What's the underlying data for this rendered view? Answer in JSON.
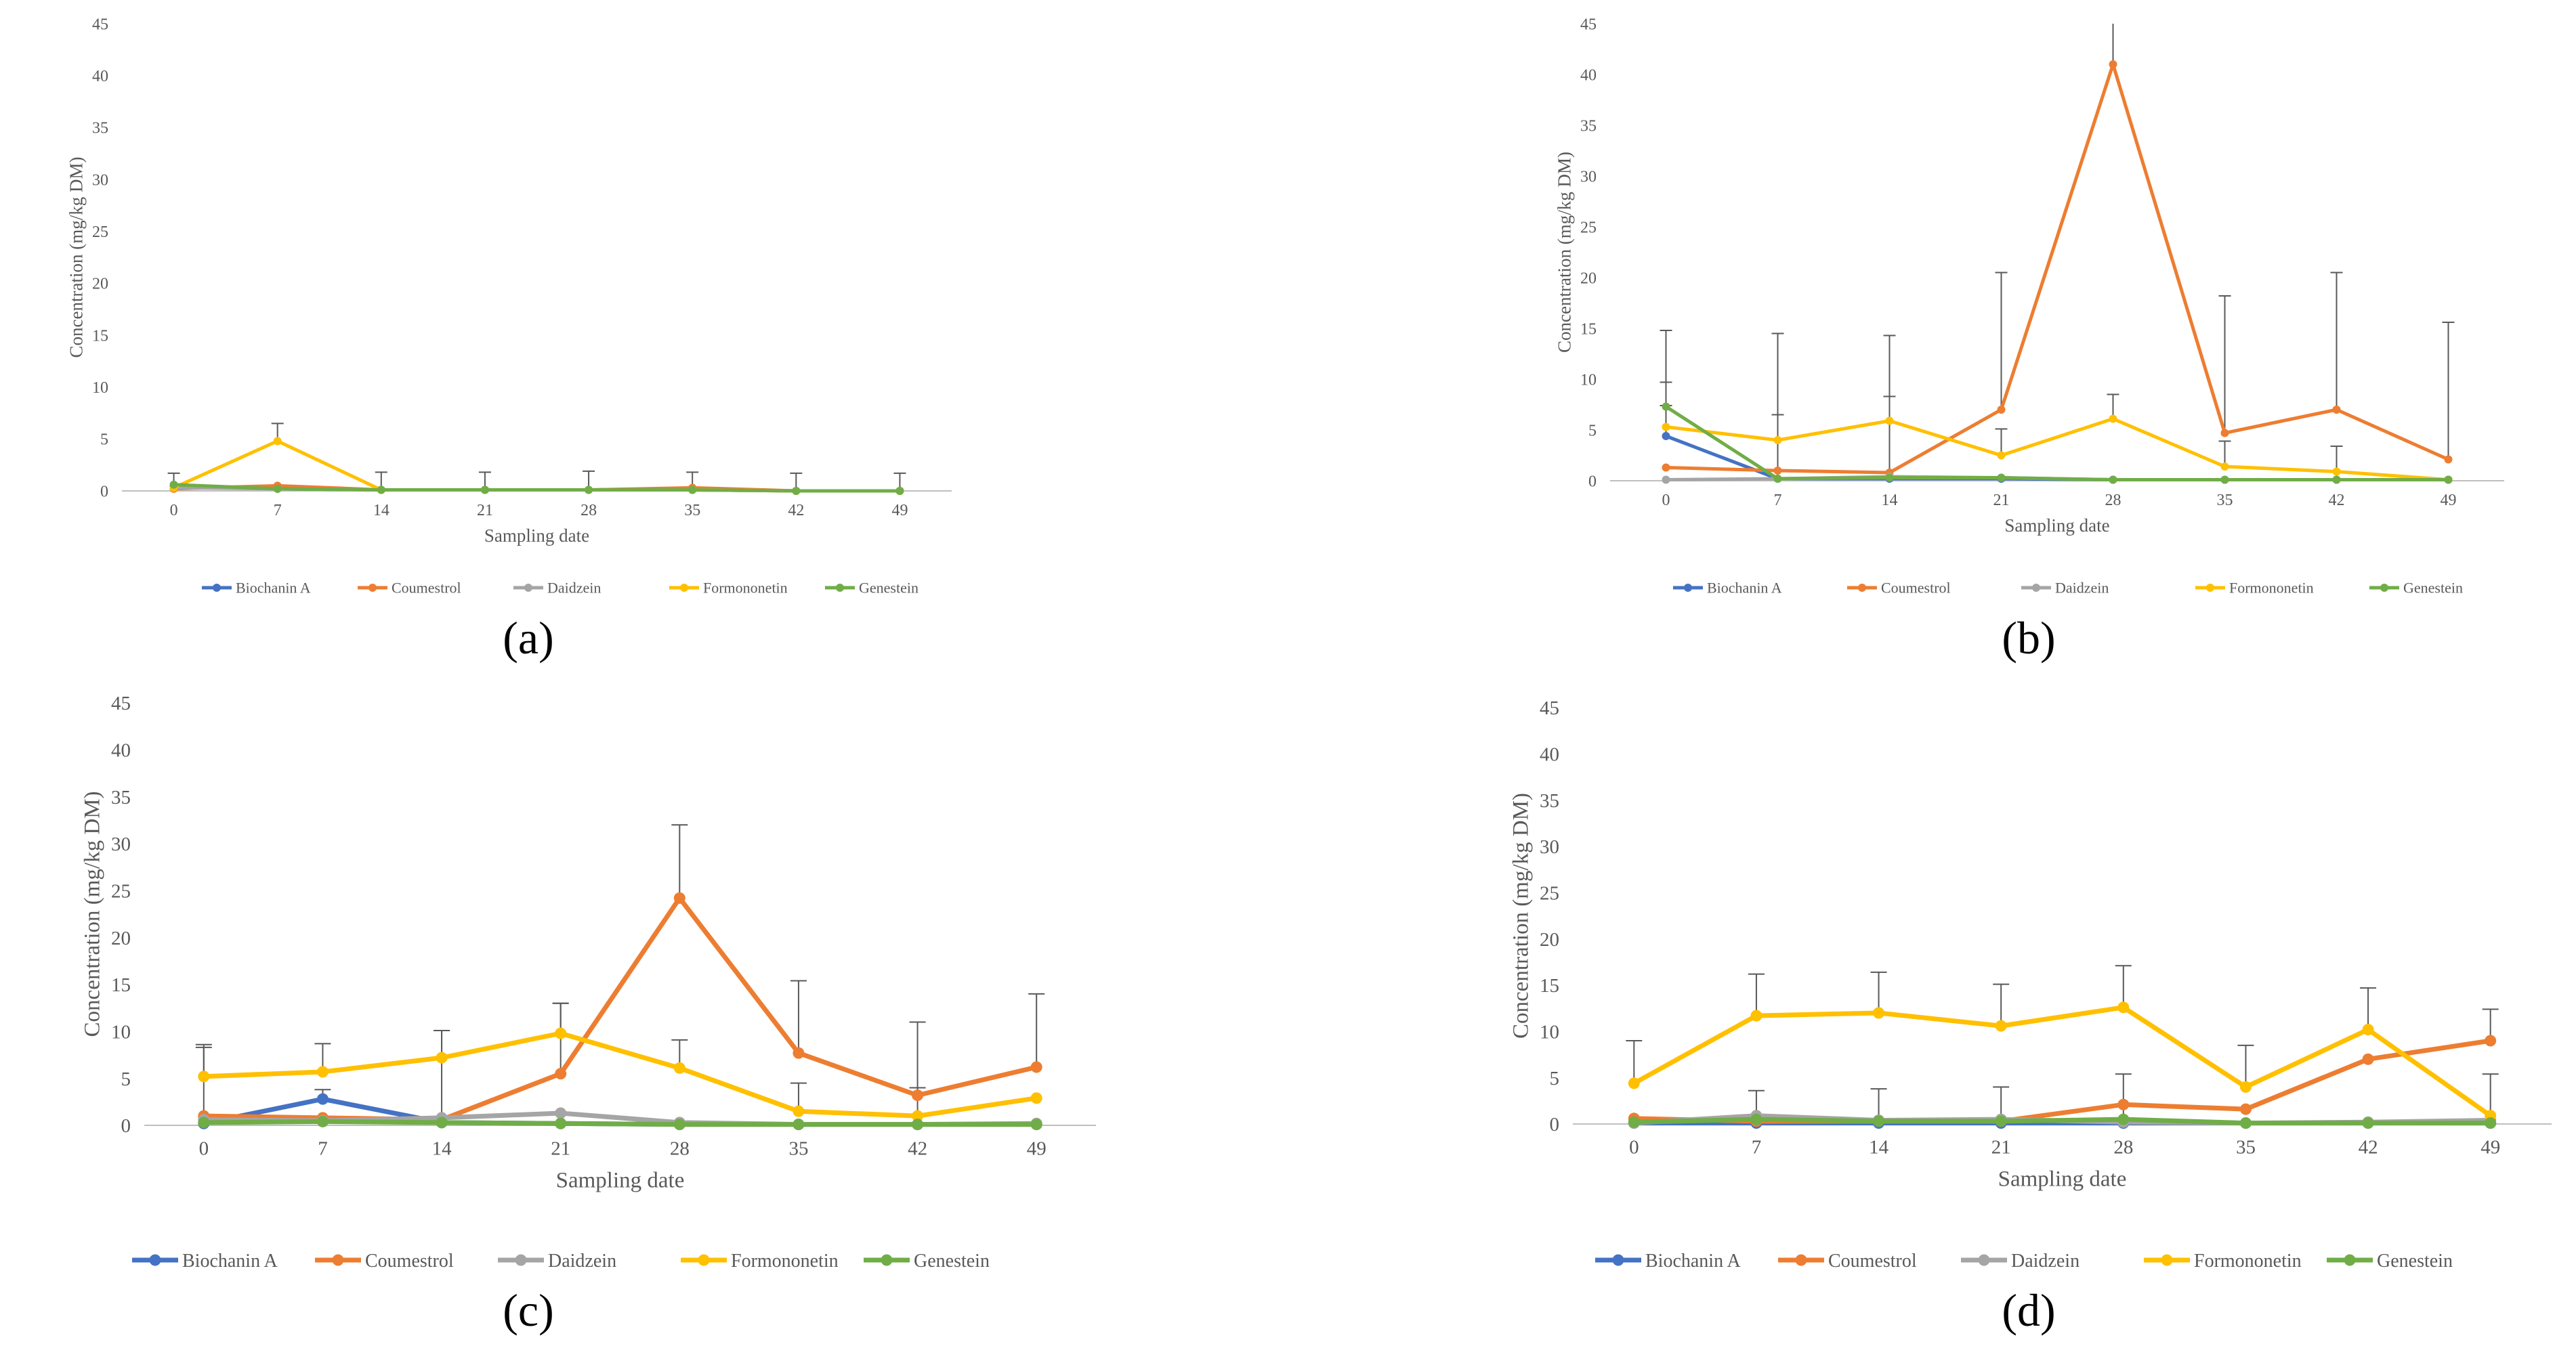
{
  "figure": {
    "panel_labels": [
      "(a)",
      "(b)",
      "(c)",
      "(d)"
    ]
  },
  "series_colors": {
    "Biochanin A": "#4472C4",
    "Coumestrol": "#ED7D31",
    "Daidzein": "#A5A5A5",
    "Formononetin": "#FFC000",
    "Genestein": "#70AD47"
  },
  "chart_data": [
    {
      "type": "line",
      "panel": "(a)",
      "title": "",
      "xlabel": "Sampling date",
      "ylabel": "Concentration (mg/kg DM)",
      "ylim": [
        0,
        45
      ],
      "yticks": [
        "0",
        "5",
        "10",
        "15",
        "20",
        "25",
        "30",
        "35",
        "40",
        "45"
      ],
      "categories": [
        "0",
        "7",
        "14",
        "21",
        "28",
        "35",
        "42",
        "49"
      ],
      "legend": "bottom",
      "series": [
        {
          "name": "Biochanin A",
          "values": [
            0.5,
            0.2,
            0.1,
            0.1,
            0.1,
            0.1,
            0.0,
            0.0
          ],
          "err": [
            1.2,
            0,
            0,
            0,
            0,
            0,
            0,
            0
          ]
        },
        {
          "name": "Coumestrol",
          "values": [
            0.2,
            0.5,
            0.1,
            0.1,
            0.1,
            0.3,
            0.0,
            0.0
          ],
          "err": [
            0,
            0,
            1.7,
            1.7,
            1.8,
            1.5,
            1.7,
            1.7
          ]
        },
        {
          "name": "Daidzein",
          "values": [
            0.3,
            0.2,
            0.1,
            0.1,
            0.1,
            0.1,
            0.0,
            0.0
          ],
          "err": [
            0,
            0,
            0,
            0,
            0,
            0,
            0,
            0
          ]
        },
        {
          "name": "Formononetin",
          "values": [
            0.3,
            4.8,
            0.1,
            0.1,
            0.1,
            0.1,
            0.0,
            0.0
          ],
          "err": [
            0,
            1.7,
            0,
            0,
            0,
            0,
            0,
            0
          ]
        },
        {
          "name": "Genestein",
          "values": [
            0.6,
            0.2,
            0.1,
            0.1,
            0.1,
            0.1,
            0.0,
            0.0
          ],
          "err": [
            0,
            0,
            0,
            0,
            0,
            0,
            0,
            0
          ]
        }
      ]
    },
    {
      "type": "line",
      "panel": "(b)",
      "title": "",
      "xlabel": "Sampling date",
      "ylabel": "Concentration (mg/kg DM)",
      "ylim": [
        0,
        45
      ],
      "yticks": [
        "0",
        "5",
        "10",
        "15",
        "20",
        "25",
        "30",
        "35",
        "40",
        "45"
      ],
      "categories": [
        "0",
        "7",
        "14",
        "21",
        "28",
        "35",
        "42",
        "49"
      ],
      "legend": "bottom",
      "series": [
        {
          "name": "Biochanin A",
          "values": [
            4.4,
            0.2,
            0.2,
            0.2,
            0.1,
            0.1,
            0.1,
            0.1
          ],
          "err": [
            3.0,
            0,
            0,
            0,
            0,
            0,
            0,
            0
          ]
        },
        {
          "name": "Coumestrol",
          "values": [
            1.3,
            1.0,
            0.8,
            7.0,
            41.0,
            4.7,
            7.0,
            2.1
          ],
          "err": [
            0,
            13.5,
            13.5,
            13.5,
            8.0,
            13.5,
            13.5,
            13.5
          ]
        },
        {
          "name": "Daidzein",
          "values": [
            0.1,
            0.2,
            0.4,
            0.3,
            0.1,
            0.1,
            0.1,
            0.1
          ],
          "err": [
            0,
            0,
            0,
            0,
            0,
            0,
            0,
            0
          ]
        },
        {
          "name": "Formononetin",
          "values": [
            5.3,
            4.0,
            5.9,
            2.5,
            6.1,
            1.4,
            0.9,
            0.1
          ],
          "err": [
            4.4,
            2.5,
            2.4,
            2.6,
            2.4,
            2.5,
            2.5,
            0
          ]
        },
        {
          "name": "Genestein",
          "values": [
            7.3,
            0.2,
            0.3,
            0.3,
            0.1,
            0.1,
            0.1,
            0.1
          ],
          "err": [
            7.5,
            0,
            0,
            0,
            0,
            0,
            0,
            0
          ]
        }
      ]
    },
    {
      "type": "line",
      "panel": "(c)",
      "title": "",
      "xlabel": "Sampling date",
      "ylabel": "Concentration (mg/kg DM)",
      "ylim": [
        0,
        45
      ],
      "yticks": [
        "0",
        "5",
        "10",
        "15",
        "20",
        "25",
        "30",
        "35",
        "40",
        "45"
      ],
      "categories": [
        "0",
        "7",
        "14",
        "21",
        "28",
        "35",
        "42",
        "49"
      ],
      "legend": "bottom",
      "series": [
        {
          "name": "Biochanin A",
          "values": [
            0.2,
            2.8,
            0.3,
            0.2,
            0.1,
            0.1,
            0.1,
            0.1
          ],
          "err": [
            0,
            1.0,
            0,
            0,
            0,
            0,
            0,
            0
          ]
        },
        {
          "name": "Coumestrol",
          "values": [
            1.0,
            0.8,
            0.6,
            5.5,
            24.2,
            7.7,
            3.2,
            6.2
          ],
          "err": [
            7.3,
            0,
            9.5,
            7.5,
            7.8,
            7.7,
            7.8,
            7.8
          ]
        },
        {
          "name": "Daidzein",
          "values": [
            0.6,
            0.5,
            0.8,
            1.3,
            0.3,
            0.1,
            0.1,
            0.2
          ],
          "err": [
            0,
            0,
            0,
            0,
            0,
            0,
            0,
            0
          ]
        },
        {
          "name": "Formononetin",
          "values": [
            5.2,
            5.7,
            7.2,
            9.8,
            6.1,
            1.5,
            1.0,
            2.9
          ],
          "err": [
            3.4,
            3.0,
            2.9,
            3.2,
            3.0,
            3.0,
            3.0,
            0
          ]
        },
        {
          "name": "Genestein",
          "values": [
            0.3,
            0.4,
            0.3,
            0.2,
            0.1,
            0.1,
            0.1,
            0.1
          ],
          "err": [
            0,
            0,
            0,
            0,
            0,
            0,
            0,
            0
          ]
        }
      ]
    },
    {
      "type": "line",
      "panel": "(d)",
      "title": "",
      "xlabel": "Sampling date",
      "ylabel": "Concentration (mg/kg DM)",
      "ylim": [
        0,
        45
      ],
      "yticks": [
        "0",
        "5",
        "10",
        "15",
        "20",
        "25",
        "30",
        "35",
        "40",
        "45"
      ],
      "categories": [
        "0",
        "7",
        "14",
        "21",
        "28",
        "35",
        "42",
        "49"
      ],
      "legend": "bottom",
      "series": [
        {
          "name": "Biochanin A",
          "values": [
            0.1,
            0.1,
            0.1,
            0.1,
            0.1,
            0.1,
            0.1,
            0.1
          ],
          "err": [
            0,
            0,
            0,
            0,
            0,
            0,
            0,
            0
          ]
        },
        {
          "name": "Coumestrol",
          "values": [
            0.6,
            0.3,
            0.3,
            0.3,
            2.1,
            1.6,
            7.0,
            9.0
          ],
          "err": [
            0,
            0,
            0,
            0,
            0,
            0,
            0,
            3.4
          ]
        },
        {
          "name": "Daidzein",
          "values": [
            0.1,
            0.9,
            0.4,
            0.5,
            0.2,
            0.1,
            0.2,
            0.4
          ],
          "err": [
            0,
            2.7,
            3.4,
            3.5,
            5.2,
            0,
            0,
            5.0
          ]
        },
        {
          "name": "Formononetin",
          "values": [
            4.4,
            11.7,
            12.0,
            10.6,
            12.6,
            4.0,
            10.2,
            0.9
          ],
          "err": [
            4.6,
            4.5,
            4.4,
            4.5,
            4.5,
            4.5,
            4.5,
            0
          ]
        },
        {
          "name": "Genestein",
          "values": [
            0.2,
            0.5,
            0.3,
            0.3,
            0.5,
            0.1,
            0.1,
            0.1
          ],
          "err": [
            0,
            0,
            0,
            0,
            0,
            0,
            0,
            0
          ]
        }
      ]
    }
  ]
}
